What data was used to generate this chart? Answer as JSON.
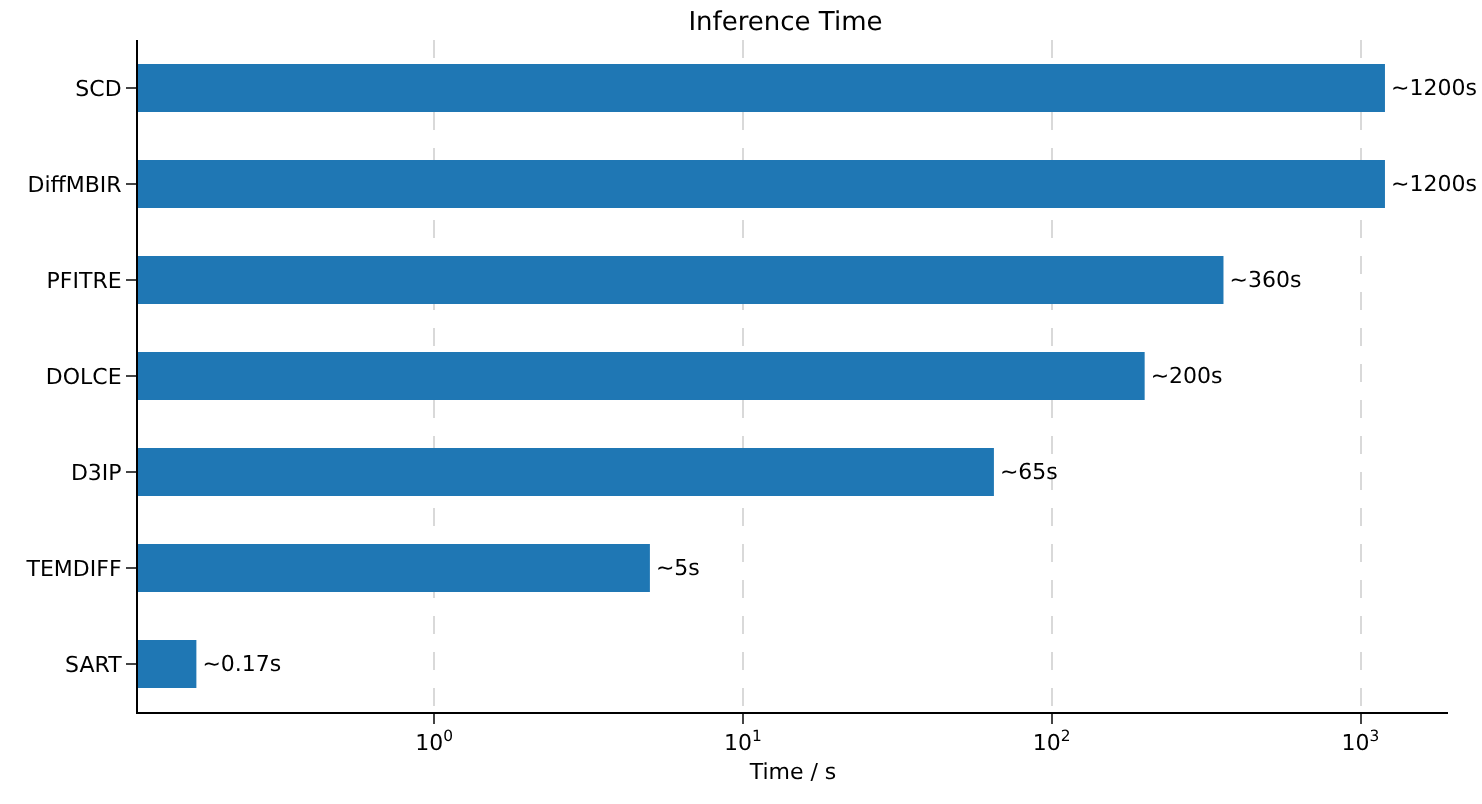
{
  "chart_data": {
    "type": "bar",
    "orientation": "horizontal",
    "title": "Inference Time",
    "xlabel": "Time / s",
    "categories": [
      "SCD",
      "DiffMBIR",
      "PFITRE",
      "DOLCE",
      "D3IP",
      "TEMDIFF",
      "SART"
    ],
    "values": [
      1200,
      1200,
      360,
      200,
      65,
      5,
      0.17
    ],
    "value_labels": [
      "~1200s",
      "~1200s",
      "~360s",
      "~200s",
      "~65s",
      "~5s",
      "~0.17s"
    ],
    "color": "#1f77b4",
    "log": "x",
    "grid": "x",
    "xlim": [
      0.11,
      1920
    ],
    "xticks": [
      {
        "value": 1,
        "label": "10$^{0}$"
      },
      {
        "value": 10,
        "label": "10$^{1}$"
      },
      {
        "value": 100,
        "label": "10$^{2}$"
      },
      {
        "value": 1000,
        "label": "10$^{3}$"
      }
    ]
  }
}
